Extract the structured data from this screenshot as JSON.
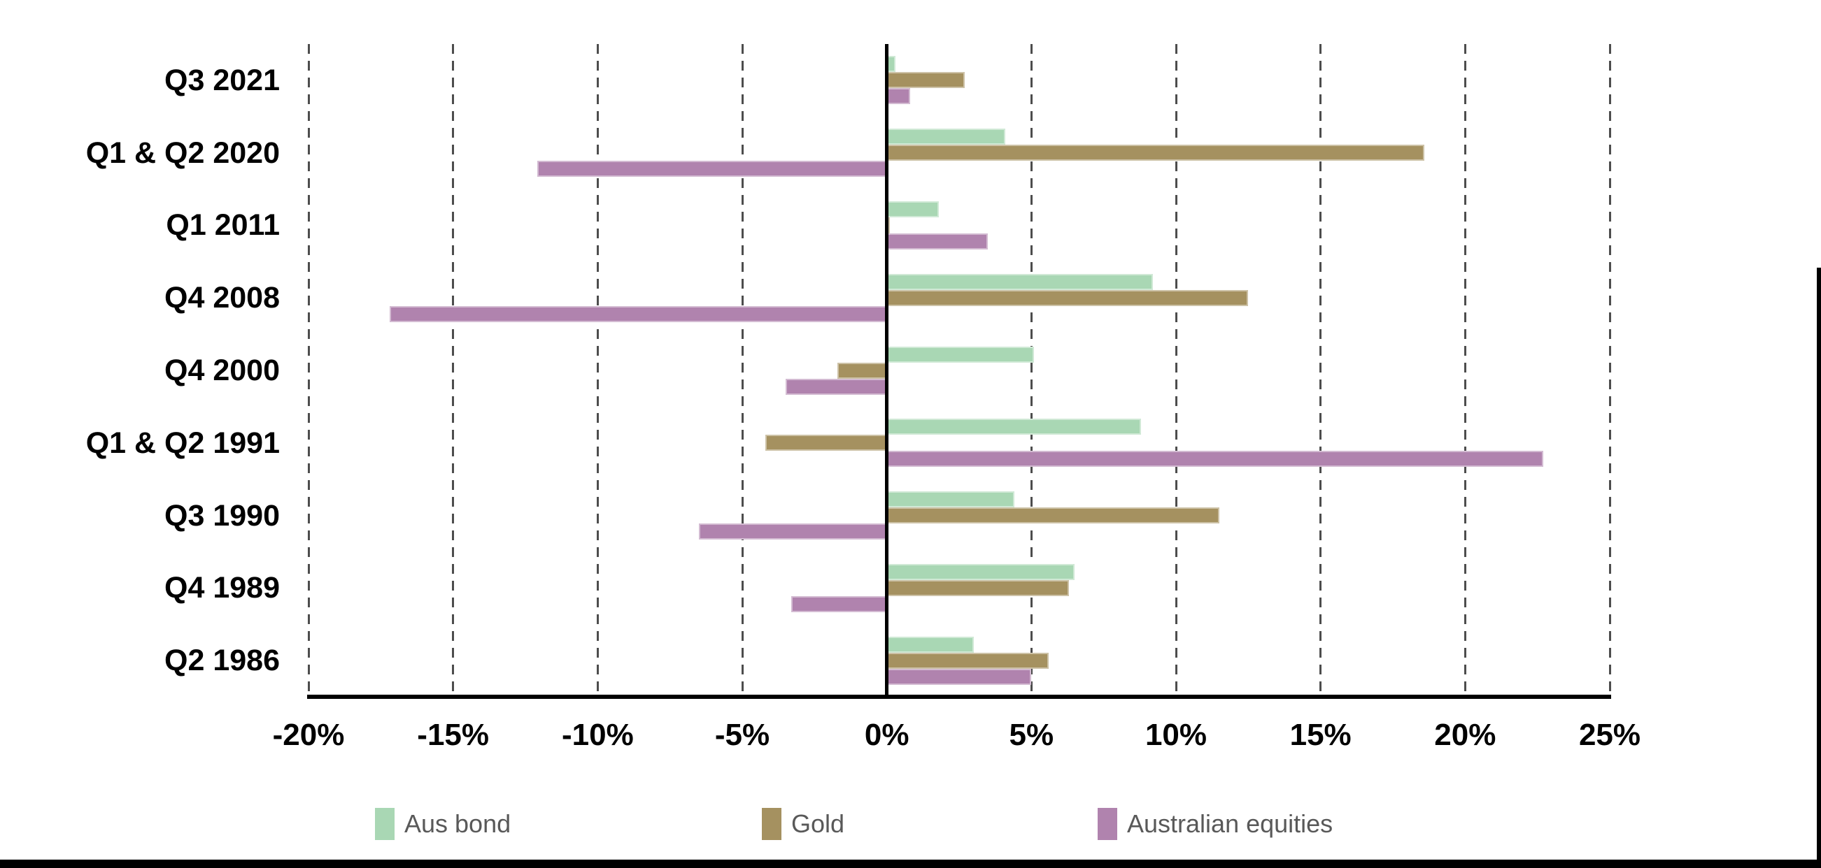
{
  "chart_data": {
    "type": "bar",
    "orientation": "horizontal",
    "title": "",
    "categories": [
      "Q3 2021",
      "Q1 & Q2 2020",
      "Q1 2011",
      "Q4 2008",
      "Q4 2000",
      "Q1 & Q2 1991",
      "Q3 1990",
      "Q4 1989",
      "Q2 1986"
    ],
    "series": [
      {
        "name": "Aus bond",
        "color": "#A9D7B4",
        "values": [
          0.3,
          4.1,
          1.8,
          9.2,
          5.1,
          8.8,
          4.4,
          6.5,
          3.0
        ]
      },
      {
        "name": "Gold",
        "color": "#A59160",
        "values": [
          2.7,
          18.6,
          0.05,
          12.5,
          -1.7,
          -4.2,
          11.5,
          6.3,
          5.6
        ]
      },
      {
        "name": "Australian equities",
        "color": "#B083AE",
        "values": [
          0.8,
          -12.1,
          3.5,
          -17.2,
          -3.5,
          22.7,
          -6.5,
          -3.3,
          5.0
        ]
      }
    ],
    "x_axis": {
      "min": -20,
      "max": 25,
      "step": 5,
      "format": "percent",
      "tick_labels": [
        "-20%",
        "-15%",
        "-10%",
        "-5%",
        "0%",
        "5%",
        "10%",
        "15%",
        "20%",
        "25%"
      ]
    },
    "grid": "vertical-dashed",
    "legend_position": "bottom"
  },
  "legend": {
    "items": [
      {
        "label": "Aus bond",
        "color": "#A9D7B4"
      },
      {
        "label": "Gold",
        "color": "#A59160"
      },
      {
        "label": "Australian equities",
        "color": "#B083AE"
      }
    ]
  },
  "styles": {
    "gridline_color": "#4d4d4d",
    "axis_color": "#000000",
    "tick_label_color": "#000000",
    "legend_text_color": "#595959"
  }
}
